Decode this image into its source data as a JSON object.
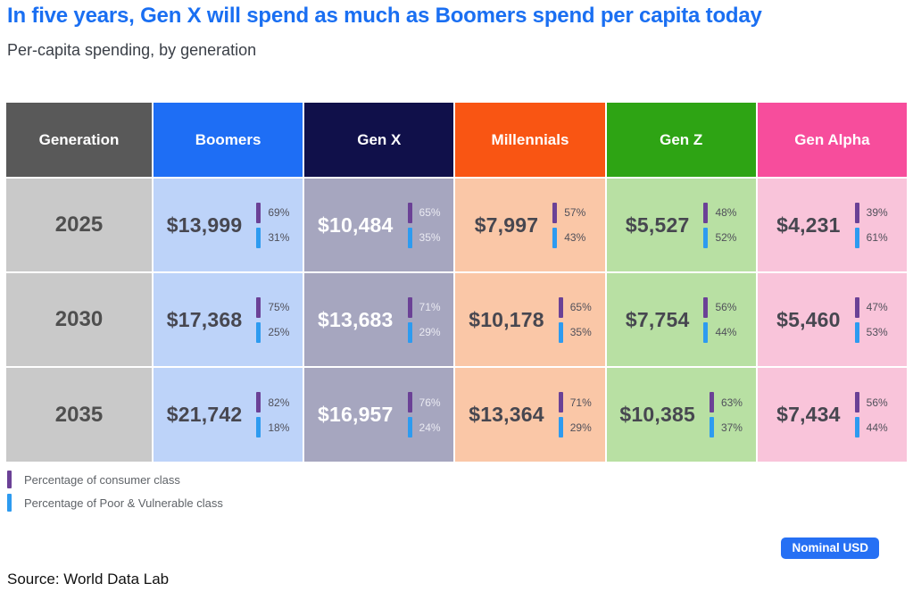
{
  "header": {
    "title": "In five years, Gen X will spend as much as Boomers spend per capita today",
    "subtitle": "Per-capita spending, by generation"
  },
  "table": {
    "columns": [
      {
        "label": "Generation",
        "header_bg": "#595959",
        "cell_bg": "#c9c9c9",
        "amount_color": "#4f4f4f",
        "pct_color": "#50505a"
      },
      {
        "label": "Boomers",
        "header_bg": "#1e6ef5",
        "cell_bg": "#bdd3f9",
        "amount_color": "#474750",
        "pct_color": "#50505a"
      },
      {
        "label": "Gen X",
        "header_bg": "#10104a",
        "cell_bg": "#a6a6bf",
        "amount_color": "#ffffff",
        "pct_color": "#eaeaf2"
      },
      {
        "label": "Millennials",
        "header_bg": "#f95513",
        "cell_bg": "#fac7a7",
        "amount_color": "#474750",
        "pct_color": "#50505a"
      },
      {
        "label": "Gen Z",
        "header_bg": "#2ea414",
        "cell_bg": "#b8e0a3",
        "amount_color": "#474750",
        "pct_color": "#50505a"
      },
      {
        "label": "Gen Alpha",
        "header_bg": "#f74d9c",
        "cell_bg": "#f9c4da",
        "amount_color": "#474750",
        "pct_color": "#50505a"
      }
    ],
    "rows": [
      {
        "year": "2025",
        "cells": [
          {
            "value": "$13,999",
            "consumer_pct": "69%",
            "poor_pct": "31%"
          },
          {
            "value": "$10,484",
            "consumer_pct": "65%",
            "poor_pct": "35%"
          },
          {
            "value": "$7,997",
            "consumer_pct": "57%",
            "poor_pct": "43%"
          },
          {
            "value": "$5,527",
            "consumer_pct": "48%",
            "poor_pct": "52%"
          },
          {
            "value": "$4,231",
            "consumer_pct": "39%",
            "poor_pct": "61%"
          }
        ]
      },
      {
        "year": "2030",
        "cells": [
          {
            "value": "$17,368",
            "consumer_pct": "75%",
            "poor_pct": "25%"
          },
          {
            "value": "$13,683",
            "consumer_pct": "71%",
            "poor_pct": "29%"
          },
          {
            "value": "$10,178",
            "consumer_pct": "65%",
            "poor_pct": "35%"
          },
          {
            "value": "$7,754",
            "consumer_pct": "56%",
            "poor_pct": "44%"
          },
          {
            "value": "$5,460",
            "consumer_pct": "47%",
            "poor_pct": "53%"
          }
        ]
      },
      {
        "year": "2035",
        "cells": [
          {
            "value": "$21,742",
            "consumer_pct": "82%",
            "poor_pct": "18%"
          },
          {
            "value": "$16,957",
            "consumer_pct": "76%",
            "poor_pct": "24%"
          },
          {
            "value": "$13,364",
            "consumer_pct": "71%",
            "poor_pct": "29%"
          },
          {
            "value": "$10,385",
            "consumer_pct": "63%",
            "poor_pct": "37%"
          },
          {
            "value": "$7,434",
            "consumer_pct": "56%",
            "poor_pct": "44%"
          }
        ]
      }
    ]
  },
  "legend": {
    "consumer_color": "#6b4196",
    "poor_color": "#2d9bf0",
    "consumer_label": "Percentage of consumer class",
    "poor_label": "Percentage of Poor & Vulnerable class"
  },
  "badge": {
    "label": "Nominal USD",
    "bg": "#2670f4"
  },
  "source": "Source: World Data Lab",
  "chart_data": {
    "type": "table",
    "title": "In five years, Gen X will spend as much as Boomers spend per capita today",
    "subtitle": "Per-capita spending, by generation",
    "unit": "Nominal USD",
    "row_header": "Generation",
    "years": [
      "2025",
      "2030",
      "2035"
    ],
    "series": [
      {
        "name": "Boomers",
        "spend_per_capita_usd": [
          13999,
          17368,
          21742
        ],
        "consumer_class_pct": [
          69,
          75,
          82
        ],
        "poor_vulnerable_pct": [
          31,
          25,
          18
        ]
      },
      {
        "name": "Gen X",
        "spend_per_capita_usd": [
          10484,
          13683,
          16957
        ],
        "consumer_class_pct": [
          65,
          71,
          76
        ],
        "poor_vulnerable_pct": [
          35,
          29,
          24
        ]
      },
      {
        "name": "Millennials",
        "spend_per_capita_usd": [
          7997,
          10178,
          13364
        ],
        "consumer_class_pct": [
          57,
          65,
          71
        ],
        "poor_vulnerable_pct": [
          43,
          35,
          29
        ]
      },
      {
        "name": "Gen Z",
        "spend_per_capita_usd": [
          5527,
          7754,
          10385
        ],
        "consumer_class_pct": [
          48,
          56,
          63
        ],
        "poor_vulnerable_pct": [
          52,
          44,
          37
        ]
      },
      {
        "name": "Gen Alpha",
        "spend_per_capita_usd": [
          4231,
          5460,
          7434
        ],
        "consumer_class_pct": [
          39,
          47,
          56
        ],
        "poor_vulnerable_pct": [
          61,
          53,
          44
        ]
      }
    ],
    "legend": [
      "Percentage of consumer class",
      "Percentage of Poor & Vulnerable class"
    ],
    "source": "Source: World Data Lab"
  }
}
